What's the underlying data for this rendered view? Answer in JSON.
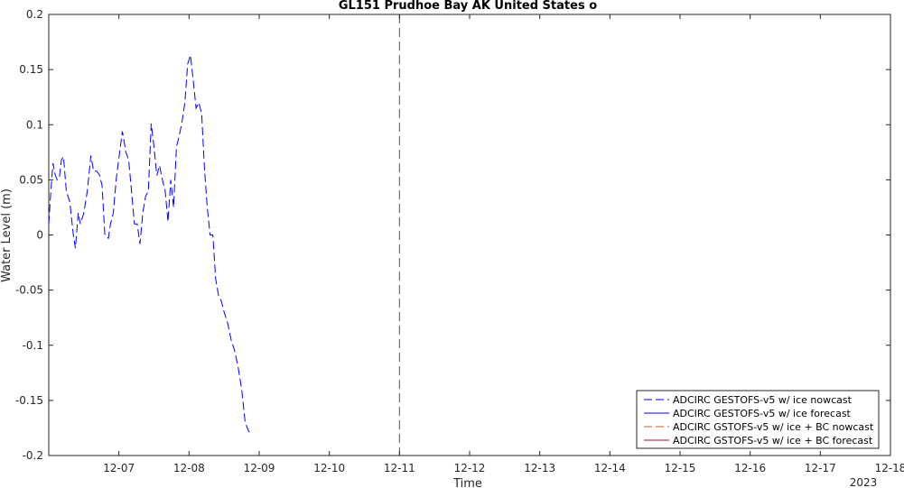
{
  "chart_data": {
    "type": "line",
    "title": "GL151 Prudhoe Bay AK United States o",
    "xlabel": "Time",
    "ylabel": "Water Level (m)",
    "xlim": [
      6.0,
      18.0
    ],
    "ylim": [
      -0.2,
      0.2
    ],
    "yticks": [
      {
        "value": 0.2,
        "label": "0.2"
      },
      {
        "value": 0.15,
        "label": "0.15"
      },
      {
        "value": 0.1,
        "label": "0.1"
      },
      {
        "value": 0.05,
        "label": "0.05"
      },
      {
        "value": 0,
        "label": "0"
      },
      {
        "value": -0.05,
        "label": "-0.05"
      },
      {
        "value": -0.1,
        "label": "-0.1"
      },
      {
        "value": -0.15,
        "label": "-0.15"
      },
      {
        "value": -0.2,
        "label": "-0.2"
      }
    ],
    "xticks": [
      {
        "value": 7,
        "label": "12-07"
      },
      {
        "value": 8,
        "label": "12-08"
      },
      {
        "value": 9,
        "label": "12-09"
      },
      {
        "value": 10,
        "label": "12-10"
      },
      {
        "value": 11,
        "label": "12-11"
      },
      {
        "value": 12,
        "label": "12-12"
      },
      {
        "value": 13,
        "label": "12-13"
      },
      {
        "value": 14,
        "label": "12-14"
      },
      {
        "value": 15,
        "label": "12-15"
      },
      {
        "value": 16,
        "label": "12-16"
      },
      {
        "value": 17,
        "label": "12-17"
      },
      {
        "value": 18,
        "label": "12-18"
      }
    ],
    "year_label": "2023",
    "nowcast_end_x": 11,
    "legend_position": "bottom-right",
    "grid": false,
    "series": [
      {
        "name": "ADCIRC GESTOFS-v5 w/ ice nowcast",
        "color": "#0000ff",
        "dash": "long-dash",
        "x": [
          6.0,
          6.03,
          6.06,
          6.09,
          6.12,
          6.15,
          6.18,
          6.21,
          6.25,
          6.3,
          6.35,
          6.38,
          6.42,
          6.45,
          6.5,
          6.55,
          6.6,
          6.64,
          6.68,
          6.72,
          6.76,
          6.8,
          6.85,
          6.88,
          6.92,
          6.96,
          7.0,
          7.05,
          7.1,
          7.14,
          7.18,
          7.22,
          7.26,
          7.3,
          7.34,
          7.38,
          7.42,
          7.46,
          7.5,
          7.54,
          7.58,
          7.62,
          7.66,
          7.7,
          7.74,
          7.78,
          7.82,
          7.86,
          7.9,
          7.94,
          7.98,
          8.02,
          8.06,
          8.1,
          8.14,
          8.18,
          8.22,
          8.26,
          8.3,
          8.34,
          8.38,
          8.42,
          8.46,
          8.5,
          8.55,
          8.6,
          8.65,
          8.7,
          8.75,
          8.8,
          8.85,
          8.88
        ],
        "values": [
          0.01,
          0.04,
          0.065,
          0.055,
          0.05,
          0.052,
          0.068,
          0.071,
          0.04,
          0.03,
          0.0,
          -0.012,
          0.02,
          0.01,
          0.02,
          0.04,
          0.072,
          0.058,
          0.058,
          0.055,
          0.045,
          0.0,
          -0.003,
          0.01,
          0.02,
          0.05,
          0.07,
          0.094,
          0.075,
          0.068,
          0.04,
          0.01,
          0.01,
          -0.008,
          0.02,
          0.035,
          0.04,
          0.101,
          0.08,
          0.054,
          0.063,
          0.05,
          0.04,
          0.012,
          0.05,
          0.025,
          0.08,
          0.09,
          0.103,
          0.12,
          0.155,
          0.163,
          0.14,
          0.115,
          0.12,
          0.11,
          0.06,
          0.025,
          0.0,
          0.0,
          -0.04,
          -0.055,
          -0.06,
          -0.07,
          -0.08,
          -0.095,
          -0.105,
          -0.12,
          -0.14,
          -0.17,
          -0.178,
          -0.18
        ]
      },
      {
        "name": "ADCIRC GESTOFS-v5 w/ ice forecast",
        "color": "#0000ff",
        "dash": "solid",
        "x": [],
        "values": []
      },
      {
        "name": "ADCIRC GSTOFS-v5 w/ ice + BC nowcast",
        "color": "#d95319",
        "dash": "long-dash",
        "x": [],
        "values": []
      },
      {
        "name": "ADCIRC GSTOFS-v5 w/ ice + BC forecast",
        "color": "#a2142f",
        "dash": "solid",
        "x": [],
        "values": []
      }
    ]
  }
}
